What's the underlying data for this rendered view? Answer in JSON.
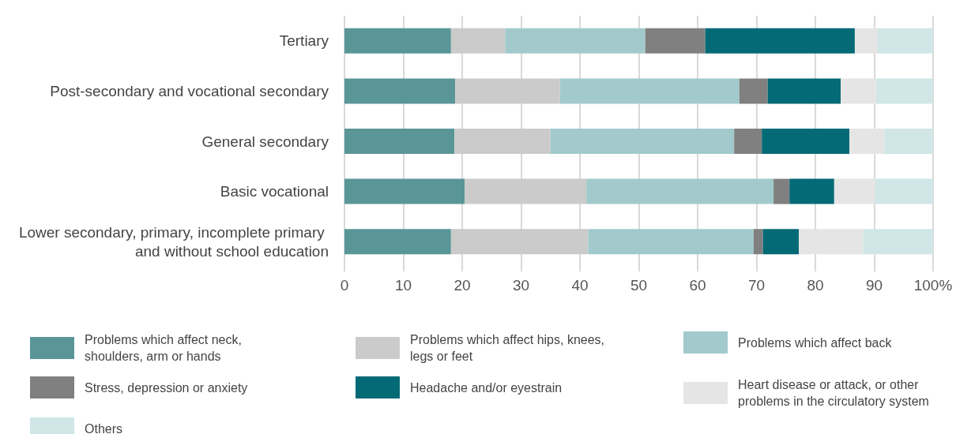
{
  "chart_data": {
    "type": "bar",
    "orientation": "horizontal",
    "stacked": true,
    "categories": [
      "Tertiary",
      "Post-secondary and vocational secondary",
      "General secondary",
      "Basic vocational",
      "Lower secondary, primary, incomplete primary and without school education"
    ],
    "series": [
      {
        "name": "Problems which affect neck, shoulders, arm or hands",
        "color": "#5a9698",
        "values": [
          18.1,
          18.8,
          18.7,
          20.4,
          18.1
        ]
      },
      {
        "name": "Problems which affect hips, knees, legs or feet",
        "color": "#cbcbcb",
        "values": [
          9.2,
          17.8,
          16.3,
          20.7,
          23.3
        ]
      },
      {
        "name": "Problems which affect back",
        "color": "#a2cacc",
        "values": [
          23.8,
          30.5,
          31.2,
          31.8,
          28.1
        ]
      },
      {
        "name": "Stress, depression or anxiety",
        "color": "#7f807f",
        "values": [
          10.2,
          4.8,
          4.7,
          2.7,
          1.6
        ]
      },
      {
        "name": "Headache and/or eyestrain",
        "color": "#036a76",
        "values": [
          25.4,
          12.4,
          14.9,
          7.6,
          6.1
        ]
      },
      {
        "name": "Heart disease or attack, or other problems in the circulatory system",
        "color": "#e5e5e5",
        "values": [
          3.9,
          6.0,
          5.9,
          7.0,
          10.9
        ]
      },
      {
        "name": "Others",
        "color": "#d0e6e7",
        "values": [
          9.4,
          9.7,
          8.3,
          9.8,
          11.9
        ]
      }
    ],
    "xlim": [
      0,
      100
    ],
    "xticks": [
      0,
      10,
      20,
      30,
      40,
      50,
      60,
      70,
      80,
      90,
      {
        "value": 100,
        "label": "100%"
      }
    ],
    "grid": "x",
    "legend": "bottom"
  }
}
